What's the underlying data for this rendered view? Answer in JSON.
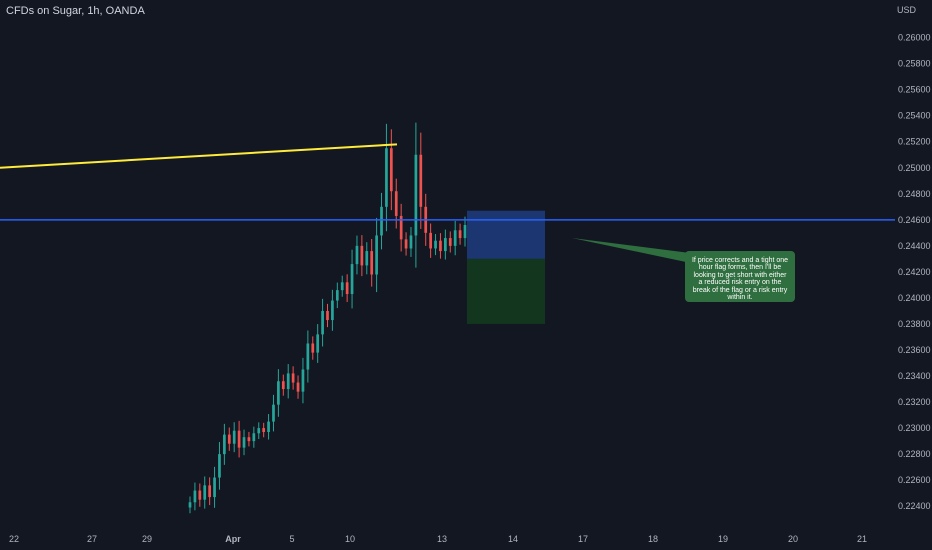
{
  "header": {
    "symbol": "CFDs on Sugar, 1h, OANDA",
    "currency": "USD"
  },
  "note": {
    "text": "If price corrects and a tight one hour flag forms, then I'll be looking to get short with either a reduced risk entry on the break of the flag or a risk entry within it."
  },
  "colors": {
    "background": "#131722",
    "up": "#26a69a",
    "down": "#ef5350",
    "trendline": "#ffeb3b",
    "horizontal_line": "#2962ff",
    "risk_zone": "#1e3a7a",
    "reward_zone": "#13381f",
    "note": "#2f6e3f"
  },
  "chart_data": {
    "type": "candlestick",
    "title": "CFDs on Sugar, 1h, OANDA",
    "ylabel": "USD",
    "ylim": [
      0.2234,
      0.2612
    ],
    "y_ticks": [
      "0.26000",
      "0.25800",
      "0.25600",
      "0.25400",
      "0.25200",
      "0.25000",
      "0.24800",
      "0.24600",
      "0.24400",
      "0.24200",
      "0.24000",
      "0.23800",
      "0.23600",
      "0.23400",
      "0.23200",
      "0.23000",
      "0.22800",
      "0.22600",
      "0.22400"
    ],
    "x_ticks": [
      "22",
      "27",
      "29",
      "Apr",
      "5",
      "10",
      "13",
      "14",
      "17",
      "18",
      "19",
      "20",
      "21"
    ],
    "price_path": [
      {
        "date": "Apr 1",
        "price": 0.2243
      },
      {
        "date": "Apr 1",
        "price": 0.2252
      },
      {
        "date": "Apr 1",
        "price": 0.2245
      },
      {
        "date": "Apr 1",
        "price": 0.2256
      },
      {
        "date": "Apr 1",
        "price": 0.2247
      },
      {
        "date": "Apr 2",
        "price": 0.2262
      },
      {
        "date": "Apr 2",
        "price": 0.228
      },
      {
        "date": "Apr 2",
        "price": 0.2295
      },
      {
        "date": "Apr 2",
        "price": 0.2288
      },
      {
        "date": "Apr 2",
        "price": 0.2298
      },
      {
        "date": "Apr 3",
        "price": 0.2285
      },
      {
        "date": "Apr 3",
        "price": 0.2293
      },
      {
        "date": "Apr 3",
        "price": 0.229
      },
      {
        "date": "Apr 4",
        "price": 0.2296
      },
      {
        "date": "Apr 4",
        "price": 0.23
      },
      {
        "date": "Apr 4",
        "price": 0.2297
      },
      {
        "date": "Apr 5",
        "price": 0.2305
      },
      {
        "date": "Apr 5",
        "price": 0.2318
      },
      {
        "date": "Apr 5",
        "price": 0.2336
      },
      {
        "date": "Apr 5",
        "price": 0.233
      },
      {
        "date": "Apr 6",
        "price": 0.2342
      },
      {
        "date": "Apr 6",
        "price": 0.2335
      },
      {
        "date": "Apr 6",
        "price": 0.2328
      },
      {
        "date": "Apr 7",
        "price": 0.2345
      },
      {
        "date": "Apr 7",
        "price": 0.2365
      },
      {
        "date": "Apr 7",
        "price": 0.2358
      },
      {
        "date": "Apr 7",
        "price": 0.2372
      },
      {
        "date": "Apr 8",
        "price": 0.239
      },
      {
        "date": "Apr 8",
        "price": 0.2383
      },
      {
        "date": "Apr 8",
        "price": 0.2398
      },
      {
        "date": "Apr 8",
        "price": 0.2406
      },
      {
        "date": "Apr 9",
        "price": 0.2412
      },
      {
        "date": "Apr 9",
        "price": 0.2403
      },
      {
        "date": "Apr 9",
        "price": 0.2426
      },
      {
        "date": "Apr 9",
        "price": 0.244
      },
      {
        "date": "Apr 10",
        "price": 0.2425
      },
      {
        "date": "Apr 10",
        "price": 0.2436
      },
      {
        "date": "Apr 10",
        "price": 0.2418
      },
      {
        "date": "Apr 10",
        "price": 0.2448
      },
      {
        "date": "Apr 10",
        "price": 0.247
      },
      {
        "date": "Apr 10",
        "price": 0.2515
      },
      {
        "date": "Apr 11",
        "price": 0.2482
      },
      {
        "date": "Apr 11",
        "price": 0.2463
      },
      {
        "date": "Apr 11",
        "price": 0.2445
      },
      {
        "date": "Apr 11",
        "price": 0.2438
      },
      {
        "date": "Apr 11",
        "price": 0.2448
      },
      {
        "date": "Apr 12",
        "price": 0.251
      },
      {
        "date": "Apr 12",
        "price": 0.247
      },
      {
        "date": "Apr 12",
        "price": 0.245
      },
      {
        "date": "Apr 12",
        "price": 0.2438
      },
      {
        "date": "Apr 12",
        "price": 0.2444
      },
      {
        "date": "Apr 13",
        "price": 0.2436
      },
      {
        "date": "Apr 13",
        "price": 0.2446
      },
      {
        "date": "Apr 13",
        "price": 0.244
      },
      {
        "date": "Apr 13",
        "price": 0.2452
      },
      {
        "date": "Apr 13",
        "price": 0.2446
      },
      {
        "date": "Apr 13",
        "price": 0.2456
      }
    ],
    "trendline": [
      {
        "date": "Mar 20",
        "price": 0.25
      },
      {
        "date": "Apr 10",
        "price": 0.2518
      }
    ],
    "horizontal_line": 0.246,
    "position": {
      "entry": 0.243,
      "stop": 0.2467,
      "target": 0.238
    },
    "grid": false,
    "legend": "none"
  }
}
